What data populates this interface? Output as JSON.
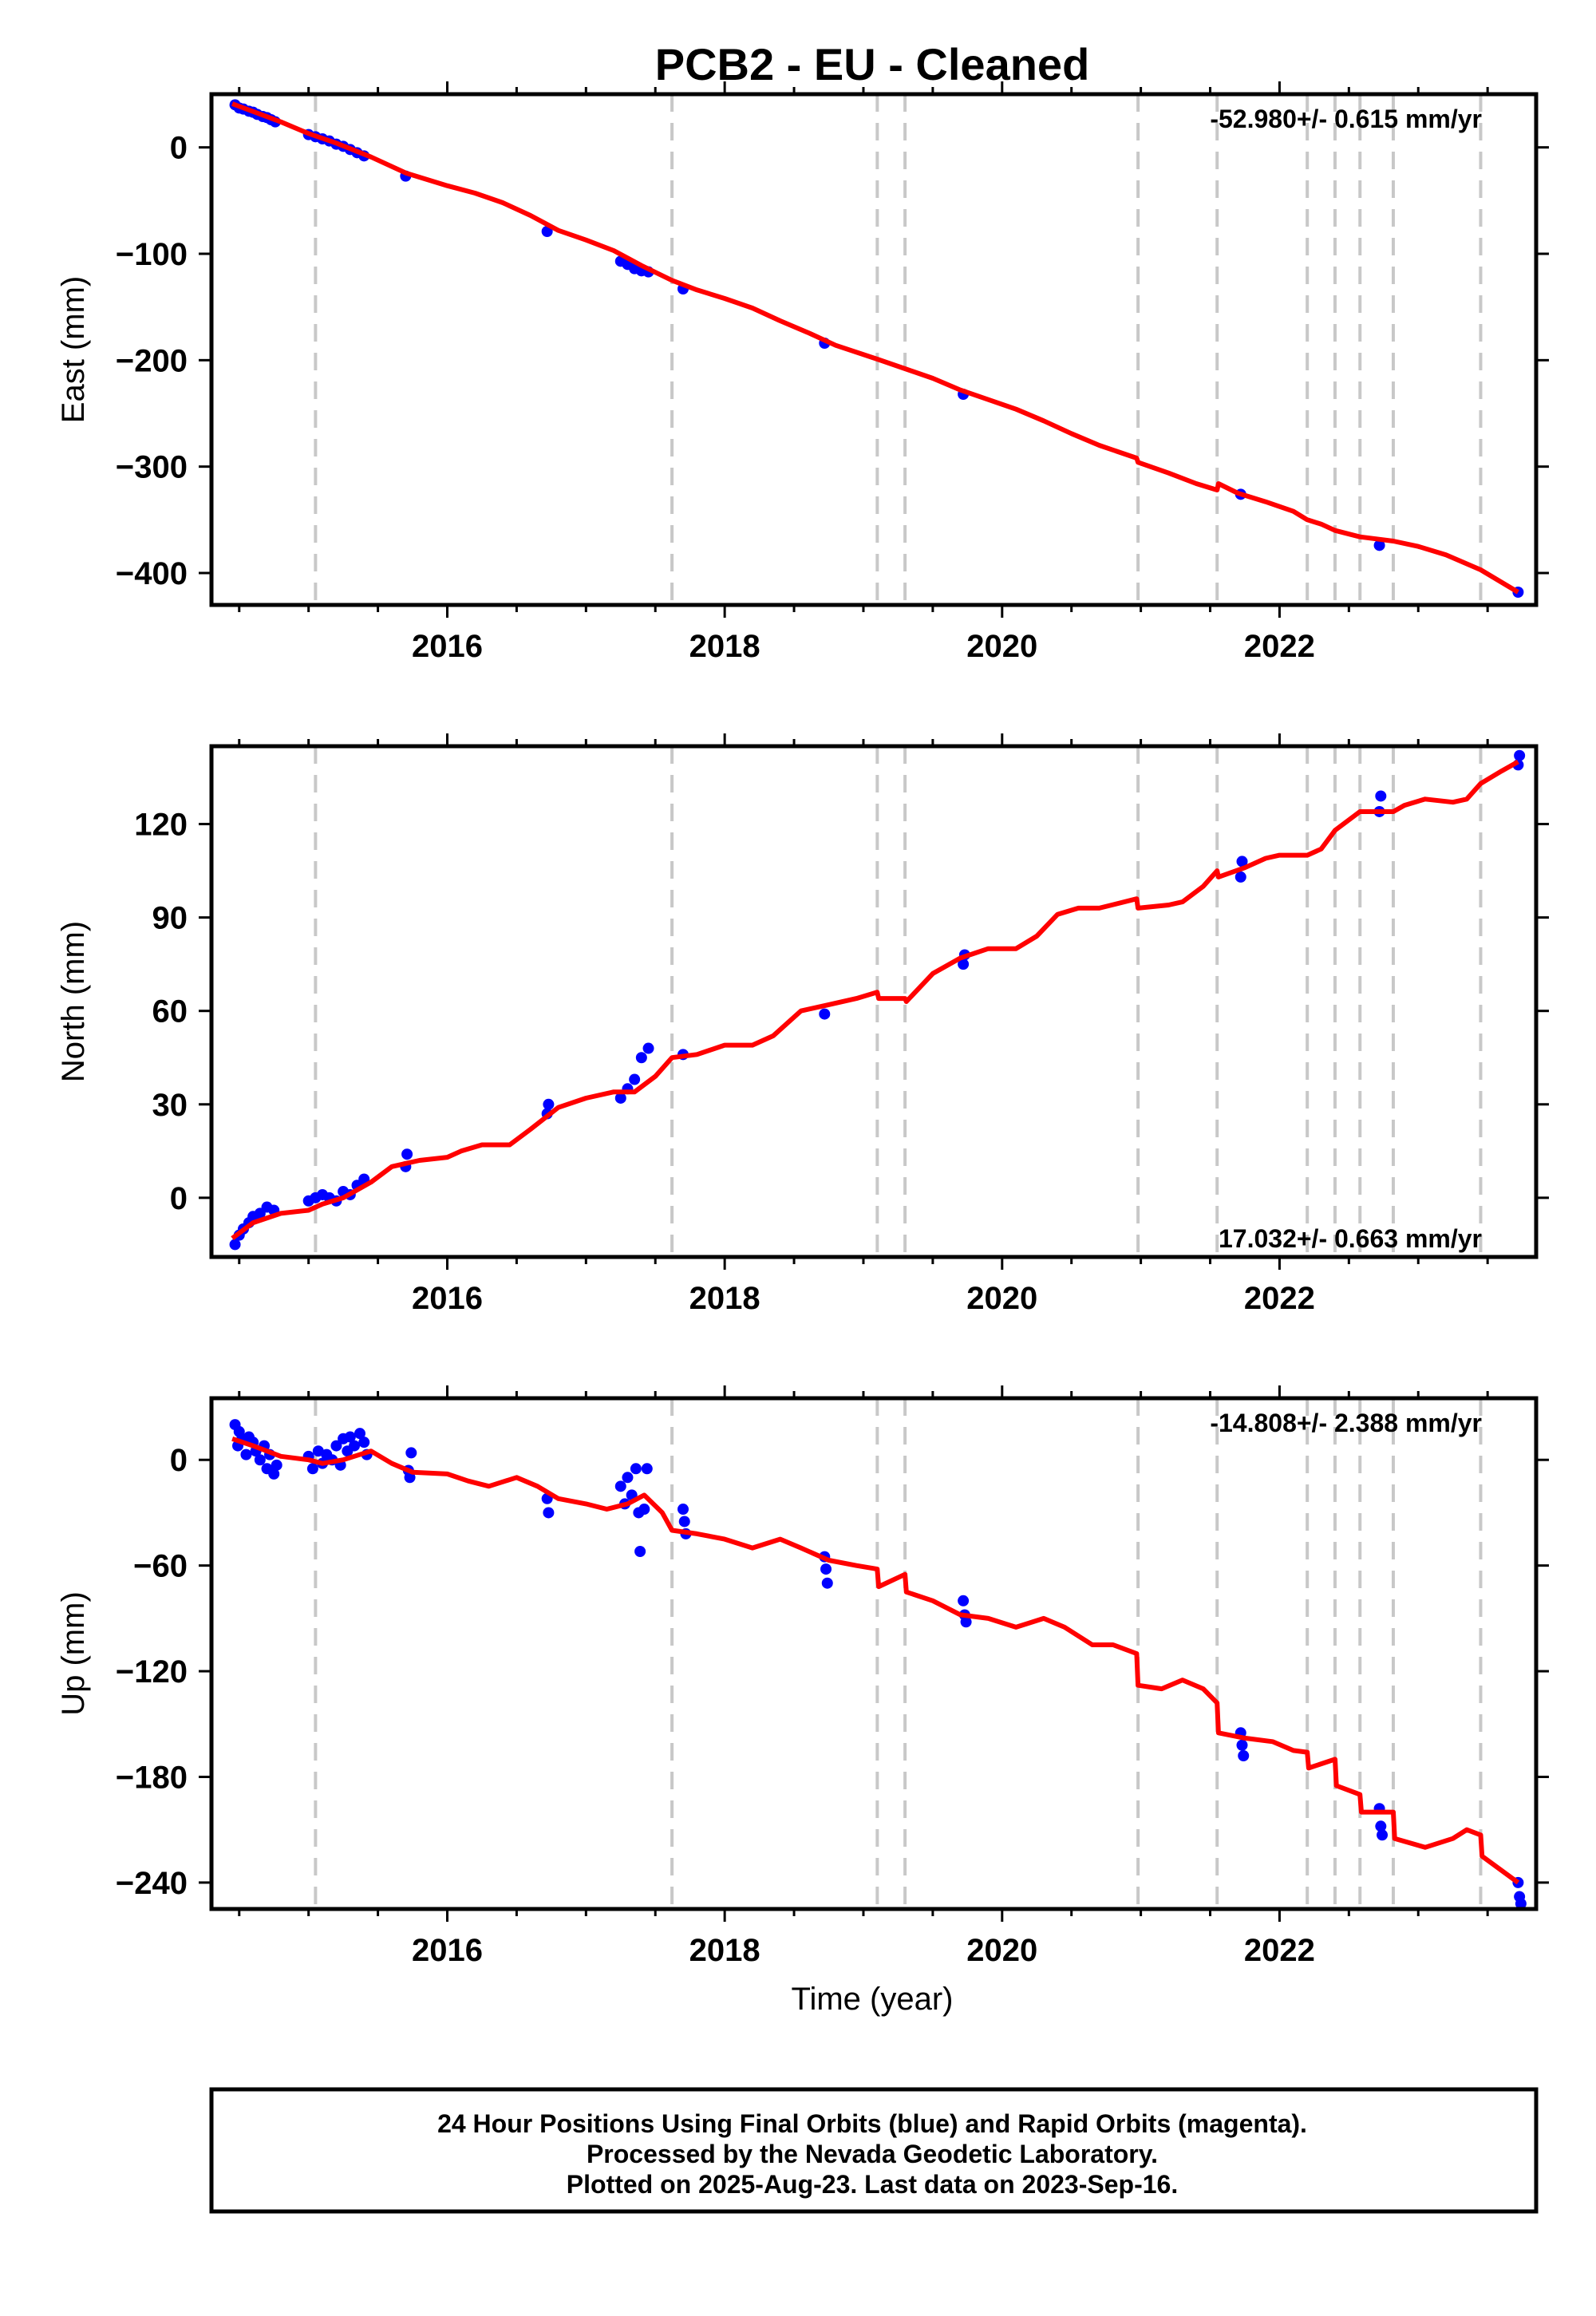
{
  "title": "PCB2  - EU - Cleaned",
  "x_axis_label": "Time (year)",
  "footer": {
    "line1": "24 Hour Positions Using Final Orbits (blue) and Rapid Orbits (magenta).",
    "line2": "Processed by the Nevada Geodetic Laboratory.",
    "line3": "Plotted on 2025-Aug-23. Last data on 2023-Sep-16."
  },
  "colors": {
    "data": "#0000ff",
    "model": "#ff0000",
    "breaks": "#c8c8c8",
    "frame": "#000000"
  },
  "chart_data": [
    {
      "type": "scatter",
      "component": "east",
      "ylabel": "East (mm)",
      "rate_text": "-52.980+/- 0.615 mm/yr",
      "rate_position": "top-right",
      "xlim": [
        2014.3,
        2023.85
      ],
      "ylim": [
        -430,
        50
      ],
      "xticks": [
        2016,
        2018,
        2020,
        2022
      ],
      "yticks": [
        0,
        -100,
        -200,
        -300,
        -400
      ],
      "break_lines": [
        2015.05,
        2017.62,
        2019.1,
        2019.3,
        2020.98,
        2021.55,
        2022.2,
        2022.4,
        2022.58,
        2022.82,
        2023.45
      ],
      "points": [
        [
          2014.47,
          40
        ],
        [
          2014.5,
          37
        ],
        [
          2014.53,
          36
        ],
        [
          2014.57,
          34
        ],
        [
          2014.6,
          33
        ],
        [
          2014.63,
          31
        ],
        [
          2014.67,
          29
        ],
        [
          2014.7,
          28
        ],
        [
          2014.73,
          26
        ],
        [
          2014.76,
          24
        ],
        [
          2015.0,
          12
        ],
        [
          2015.05,
          10
        ],
        [
          2015.1,
          8
        ],
        [
          2015.15,
          6
        ],
        [
          2015.2,
          3
        ],
        [
          2015.25,
          1
        ],
        [
          2015.3,
          -2
        ],
        [
          2015.35,
          -5
        ],
        [
          2015.4,
          -8
        ],
        [
          2015.7,
          -27
        ],
        [
          2016.72,
          -79
        ],
        [
          2017.25,
          -107
        ],
        [
          2017.3,
          -110
        ],
        [
          2017.35,
          -114
        ],
        [
          2017.4,
          -116
        ],
        [
          2017.45,
          -117
        ],
        [
          2017.7,
          -133
        ],
        [
          2018.72,
          -184
        ],
        [
          2019.72,
          -232
        ],
        [
          2021.72,
          -326
        ],
        [
          2022.72,
          -374
        ],
        [
          2023.72,
          -418
        ]
      ],
      "model": [
        [
          2014.45,
          41
        ],
        [
          2014.8,
          24
        ],
        [
          2015.0,
          13
        ],
        [
          2015.2,
          4
        ],
        [
          2015.45,
          -9
        ],
        [
          2015.7,
          -24
        ],
        [
          2016.0,
          -36
        ],
        [
          2016.2,
          -43
        ],
        [
          2016.4,
          -52
        ],
        [
          2016.6,
          -64
        ],
        [
          2016.8,
          -78
        ],
        [
          2017.0,
          -87
        ],
        [
          2017.2,
          -97
        ],
        [
          2017.4,
          -111
        ],
        [
          2017.62,
          -125
        ],
        [
          2017.8,
          -134
        ],
        [
          2018.0,
          -142
        ],
        [
          2018.2,
          -151
        ],
        [
          2018.4,
          -163
        ],
        [
          2018.6,
          -174
        ],
        [
          2018.8,
          -186
        ],
        [
          2019.1,
          -199
        ],
        [
          2019.3,
          -208
        ],
        [
          2019.5,
          -217
        ],
        [
          2019.7,
          -228
        ],
        [
          2019.9,
          -237
        ],
        [
          2020.1,
          -246
        ],
        [
          2020.3,
          -257
        ],
        [
          2020.5,
          -269
        ],
        [
          2020.7,
          -280
        ],
        [
          2020.97,
          -292
        ],
        [
          2020.98,
          -296
        ],
        [
          2021.2,
          -306
        ],
        [
          2021.4,
          -316
        ],
        [
          2021.55,
          -322
        ],
        [
          2021.56,
          -316
        ],
        [
          2021.7,
          -325
        ],
        [
          2021.9,
          -333
        ],
        [
          2022.1,
          -342
        ],
        [
          2022.2,
          -350
        ],
        [
          2022.3,
          -354
        ],
        [
          2022.4,
          -360
        ],
        [
          2022.58,
          -366
        ],
        [
          2022.7,
          -368
        ],
        [
          2022.82,
          -370
        ],
        [
          2023.0,
          -375
        ],
        [
          2023.2,
          -383
        ],
        [
          2023.45,
          -397
        ],
        [
          2023.72,
          -418
        ]
      ]
    },
    {
      "type": "scatter",
      "component": "north",
      "ylabel": "North (mm)",
      "rate_text": "17.032+/- 0.663 mm/yr",
      "rate_position": "bottom-right",
      "xlim": [
        2014.3,
        2023.85
      ],
      "ylim": [
        -19,
        145
      ],
      "xticks": [
        2016,
        2018,
        2020,
        2022
      ],
      "yticks": [
        0,
        30,
        60,
        90,
        120
      ],
      "break_lines": [
        2015.05,
        2017.62,
        2019.1,
        2019.3,
        2020.98,
        2021.55,
        2022.2,
        2022.4,
        2022.58,
        2022.82,
        2023.45
      ],
      "points": [
        [
          2014.47,
          -15
        ],
        [
          2014.5,
          -12
        ],
        [
          2014.53,
          -10
        ],
        [
          2014.57,
          -8
        ],
        [
          2014.6,
          -6
        ],
        [
          2014.65,
          -5
        ],
        [
          2014.7,
          -3
        ],
        [
          2014.75,
          -4
        ],
        [
          2015.0,
          -1
        ],
        [
          2015.05,
          0
        ],
        [
          2015.1,
          1
        ],
        [
          2015.15,
          0
        ],
        [
          2015.2,
          -1
        ],
        [
          2015.25,
          2
        ],
        [
          2015.3,
          1
        ],
        [
          2015.35,
          4
        ],
        [
          2015.4,
          6
        ],
        [
          2015.7,
          10
        ],
        [
          2015.71,
          14
        ],
        [
          2016.72,
          27
        ],
        [
          2016.73,
          30
        ],
        [
          2017.25,
          32
        ],
        [
          2017.3,
          35
        ],
        [
          2017.35,
          38
        ],
        [
          2017.4,
          45
        ],
        [
          2017.45,
          48
        ],
        [
          2017.7,
          46
        ],
        [
          2018.72,
          59
        ],
        [
          2019.72,
          75
        ],
        [
          2019.73,
          78
        ],
        [
          2021.72,
          103
        ],
        [
          2021.73,
          108
        ],
        [
          2022.72,
          124
        ],
        [
          2022.73,
          129
        ],
        [
          2023.72,
          139
        ],
        [
          2023.73,
          142
        ]
      ],
      "model": [
        [
          2014.45,
          -13
        ],
        [
          2014.6,
          -8
        ],
        [
          2014.8,
          -5
        ],
        [
          2015.0,
          -4
        ],
        [
          2015.1,
          -2
        ],
        [
          2015.25,
          0
        ],
        [
          2015.45,
          5
        ],
        [
          2015.6,
          10
        ],
        [
          2015.8,
          12
        ],
        [
          2016.0,
          13
        ],
        [
          2016.1,
          15
        ],
        [
          2016.25,
          17
        ],
        [
          2016.45,
          17
        ],
        [
          2016.6,
          22
        ],
        [
          2016.8,
          29
        ],
        [
          2017.0,
          32
        ],
        [
          2017.2,
          34
        ],
        [
          2017.35,
          34
        ],
        [
          2017.5,
          39
        ],
        [
          2017.62,
          45
        ],
        [
          2017.8,
          46
        ],
        [
          2018.0,
          49
        ],
        [
          2018.2,
          49
        ],
        [
          2018.35,
          52
        ],
        [
          2018.55,
          60
        ],
        [
          2018.75,
          62
        ],
        [
          2018.95,
          64
        ],
        [
          2019.1,
          66
        ],
        [
          2019.11,
          64
        ],
        [
          2019.3,
          64
        ],
        [
          2019.31,
          63
        ],
        [
          2019.5,
          72
        ],
        [
          2019.7,
          77
        ],
        [
          2019.9,
          80
        ],
        [
          2020.1,
          80
        ],
        [
          2020.25,
          84
        ],
        [
          2020.4,
          91
        ],
        [
          2020.55,
          93
        ],
        [
          2020.7,
          93
        ],
        [
          2020.97,
          96
        ],
        [
          2020.98,
          93
        ],
        [
          2021.2,
          94
        ],
        [
          2021.3,
          95
        ],
        [
          2021.45,
          100
        ],
        [
          2021.55,
          105
        ],
        [
          2021.56,
          103
        ],
        [
          2021.75,
          106
        ],
        [
          2021.9,
          109
        ],
        [
          2022.0,
          110
        ],
        [
          2022.2,
          110
        ],
        [
          2022.3,
          112
        ],
        [
          2022.4,
          118
        ],
        [
          2022.58,
          124
        ],
        [
          2022.7,
          124
        ],
        [
          2022.82,
          124
        ],
        [
          2022.9,
          126
        ],
        [
          2023.05,
          128
        ],
        [
          2023.25,
          127
        ],
        [
          2023.35,
          128
        ],
        [
          2023.45,
          133
        ],
        [
          2023.6,
          137
        ],
        [
          2023.72,
          140
        ]
      ]
    },
    {
      "type": "scatter",
      "component": "up",
      "ylabel": "Up (mm)",
      "rate_text": "-14.808+/- 2.388 mm/yr",
      "rate_position": "top-right",
      "xlim": [
        2014.3,
        2023.85
      ],
      "ylim": [
        -255,
        35
      ],
      "xticks": [
        2016,
        2018,
        2020,
        2022
      ],
      "yticks": [
        0,
        -60,
        -120,
        -180,
        -240
      ],
      "break_lines": [
        2015.05,
        2017.62,
        2019.1,
        2019.3,
        2020.98,
        2021.55,
        2022.2,
        2022.4,
        2022.58,
        2022.82,
        2023.45
      ],
      "points": [
        [
          2014.47,
          20
        ],
        [
          2014.49,
          8
        ],
        [
          2014.5,
          16
        ],
        [
          2014.52,
          12
        ],
        [
          2014.55,
          3
        ],
        [
          2014.57,
          13
        ],
        [
          2014.6,
          10
        ],
        [
          2014.62,
          5
        ],
        [
          2014.65,
          0
        ],
        [
          2014.68,
          8
        ],
        [
          2014.7,
          -5
        ],
        [
          2014.72,
          3
        ],
        [
          2014.75,
          -8
        ],
        [
          2014.77,
          -3
        ],
        [
          2015.0,
          2
        ],
        [
          2015.03,
          -5
        ],
        [
          2015.07,
          5
        ],
        [
          2015.1,
          -2
        ],
        [
          2015.13,
          3
        ],
        [
          2015.17,
          0
        ],
        [
          2015.2,
          8
        ],
        [
          2015.23,
          -3
        ],
        [
          2015.25,
          12
        ],
        [
          2015.28,
          5
        ],
        [
          2015.3,
          13
        ],
        [
          2015.33,
          8
        ],
        [
          2015.37,
          15
        ],
        [
          2015.4,
          10
        ],
        [
          2015.42,
          3
        ],
        [
          2015.72,
          -6
        ],
        [
          2015.73,
          -10
        ],
        [
          2015.74,
          4
        ],
        [
          2016.72,
          -22
        ],
        [
          2016.73,
          -30
        ],
        [
          2017.25,
          -15
        ],
        [
          2017.28,
          -25
        ],
        [
          2017.3,
          -10
        ],
        [
          2017.33,
          -20
        ],
        [
          2017.36,
          -5
        ],
        [
          2017.38,
          -30
        ],
        [
          2017.39,
          -52
        ],
        [
          2017.42,
          -28
        ],
        [
          2017.44,
          -5
        ],
        [
          2017.7,
          -28
        ],
        [
          2017.71,
          -35
        ],
        [
          2017.72,
          -42
        ],
        [
          2018.72,
          -55
        ],
        [
          2018.73,
          -62
        ],
        [
          2018.74,
          -70
        ],
        [
          2019.72,
          -80
        ],
        [
          2019.73,
          -88
        ],
        [
          2019.74,
          -92
        ],
        [
          2021.72,
          -155
        ],
        [
          2021.73,
          -162
        ],
        [
          2021.74,
          -168
        ],
        [
          2022.72,
          -198
        ],
        [
          2022.73,
          -208
        ],
        [
          2022.74,
          -213
        ],
        [
          2023.72,
          -240
        ],
        [
          2023.73,
          -248
        ],
        [
          2023.74,
          -252
        ]
      ],
      "model": [
        [
          2014.45,
          12
        ],
        [
          2014.6,
          8
        ],
        [
          2014.8,
          2
        ],
        [
          2015.0,
          0
        ],
        [
          2015.1,
          -2
        ],
        [
          2015.25,
          0
        ],
        [
          2015.45,
          5
        ],
        [
          2015.6,
          -2
        ],
        [
          2015.75,
          -7
        ],
        [
          2016.0,
          -8
        ],
        [
          2016.15,
          -12
        ],
        [
          2016.3,
          -15
        ],
        [
          2016.5,
          -10
        ],
        [
          2016.65,
          -15
        ],
        [
          2016.8,
          -22
        ],
        [
          2017.0,
          -25
        ],
        [
          2017.15,
          -28
        ],
        [
          2017.3,
          -25
        ],
        [
          2017.42,
          -20
        ],
        [
          2017.55,
          -30
        ],
        [
          2017.62,
          -40
        ],
        [
          2017.8,
          -42
        ],
        [
          2018.0,
          -45
        ],
        [
          2018.2,
          -50
        ],
        [
          2018.4,
          -45
        ],
        [
          2018.55,
          -50
        ],
        [
          2018.75,
          -57
        ],
        [
          2018.95,
          -60
        ],
        [
          2019.1,
          -62
        ],
        [
          2019.11,
          -72
        ],
        [
          2019.3,
          -65
        ],
        [
          2019.31,
          -75
        ],
        [
          2019.5,
          -80
        ],
        [
          2019.7,
          -88
        ],
        [
          2019.9,
          -90
        ],
        [
          2020.1,
          -95
        ],
        [
          2020.3,
          -90
        ],
        [
          2020.45,
          -95
        ],
        [
          2020.65,
          -105
        ],
        [
          2020.8,
          -105
        ],
        [
          2020.97,
          -110
        ],
        [
          2020.98,
          -128
        ],
        [
          2021.15,
          -130
        ],
        [
          2021.3,
          -125
        ],
        [
          2021.45,
          -130
        ],
        [
          2021.55,
          -138
        ],
        [
          2021.56,
          -155
        ],
        [
          2021.75,
          -158
        ],
        [
          2021.95,
          -160
        ],
        [
          2022.1,
          -165
        ],
        [
          2022.2,
          -166
        ],
        [
          2022.21,
          -175
        ],
        [
          2022.4,
          -170
        ],
        [
          2022.41,
          -185
        ],
        [
          2022.58,
          -190
        ],
        [
          2022.59,
          -200
        ],
        [
          2022.82,
          -200
        ],
        [
          2022.83,
          -215
        ],
        [
          2023.05,
          -220
        ],
        [
          2023.25,
          -215
        ],
        [
          2023.35,
          -210
        ],
        [
          2023.45,
          -213
        ],
        [
          2023.46,
          -225
        ],
        [
          2023.72,
          -240
        ]
      ]
    }
  ]
}
